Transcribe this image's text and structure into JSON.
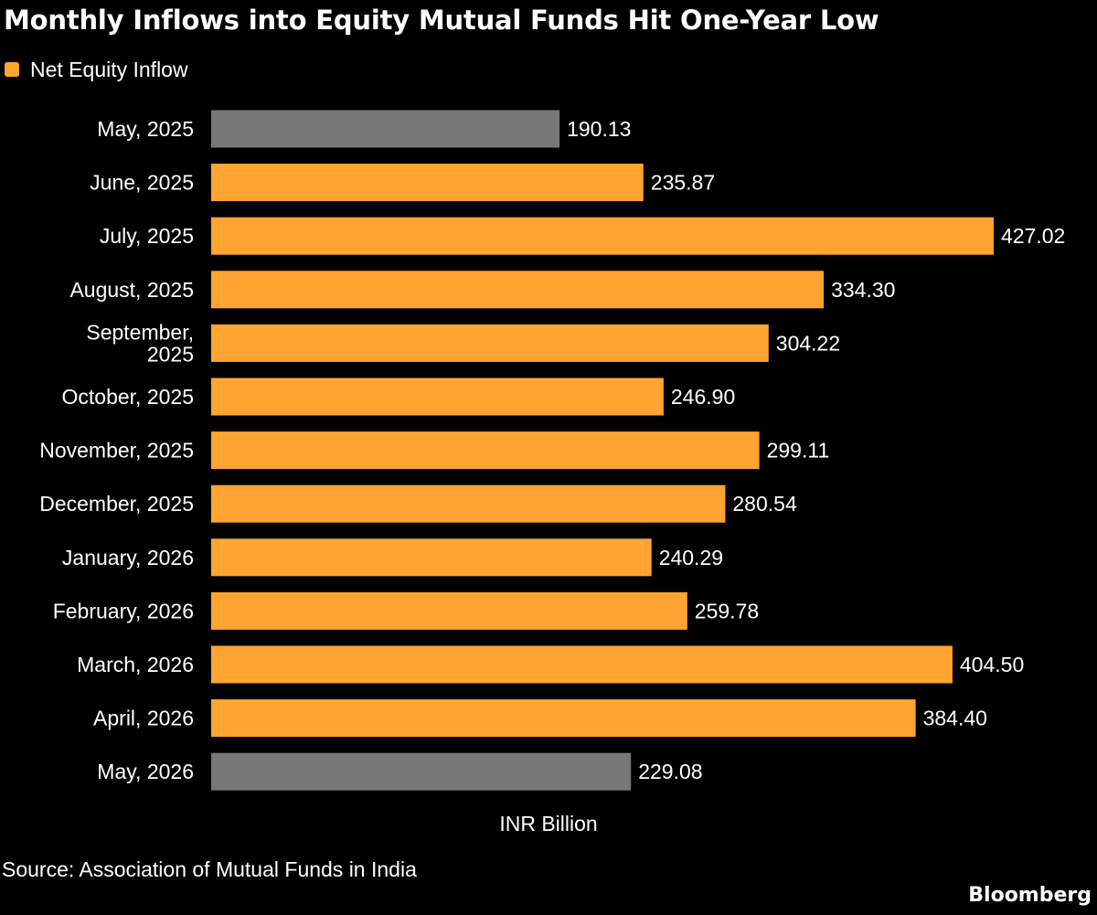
{
  "colors": {
    "background": "#000000",
    "text": "#ffffff",
    "series": "#ffa431",
    "highlight": "#777777"
  },
  "chart_data": {
    "type": "bar",
    "orientation": "horizontal",
    "title": "Monthly Inflows into Equity Mutual Funds Hit One-Year Low",
    "legend": [
      "Net Equity Inflow"
    ],
    "legend_position": "top-left",
    "xlabel": "INR Billion",
    "grid": false,
    "xlim": [
      0,
      427.02
    ],
    "categories": [
      "May, 2025",
      "June, 2025",
      "July, 2025",
      "August, 2025",
      "September, 2025",
      "October, 2025",
      "November, 2025",
      "December, 2025",
      "January, 2026",
      "February, 2026",
      "March, 2026",
      "April, 2026",
      "May, 2026"
    ],
    "category_display": [
      [
        "May, 2025"
      ],
      [
        "June, 2025"
      ],
      [
        "July, 2025"
      ],
      [
        "August, 2025"
      ],
      [
        "September,",
        "2025"
      ],
      [
        "October, 2025"
      ],
      [
        "November, 2025"
      ],
      [
        "December, 2025"
      ],
      [
        "January, 2026"
      ],
      [
        "February, 2026"
      ],
      [
        "March, 2026"
      ],
      [
        "April, 2026"
      ],
      [
        "May, 2026"
      ]
    ],
    "series": [
      {
        "name": "Net Equity Inflow",
        "values": [
          190.13,
          235.87,
          427.02,
          334.3,
          304.22,
          246.9,
          299.11,
          280.54,
          240.29,
          259.78,
          404.5,
          384.4,
          229.08
        ]
      }
    ],
    "value_labels": [
      "190.13",
      "235.87",
      "427.02",
      "334.30",
      "304.22",
      "246.90",
      "299.11",
      "280.54",
      "240.29",
      "259.78",
      "404.50",
      "384.40",
      "229.08"
    ],
    "highlighted_categories": [
      "May, 2025",
      "May, 2026"
    ]
  },
  "footer": {
    "source": "Source: Association of Mutual Funds in India",
    "brand": "Bloomberg"
  }
}
